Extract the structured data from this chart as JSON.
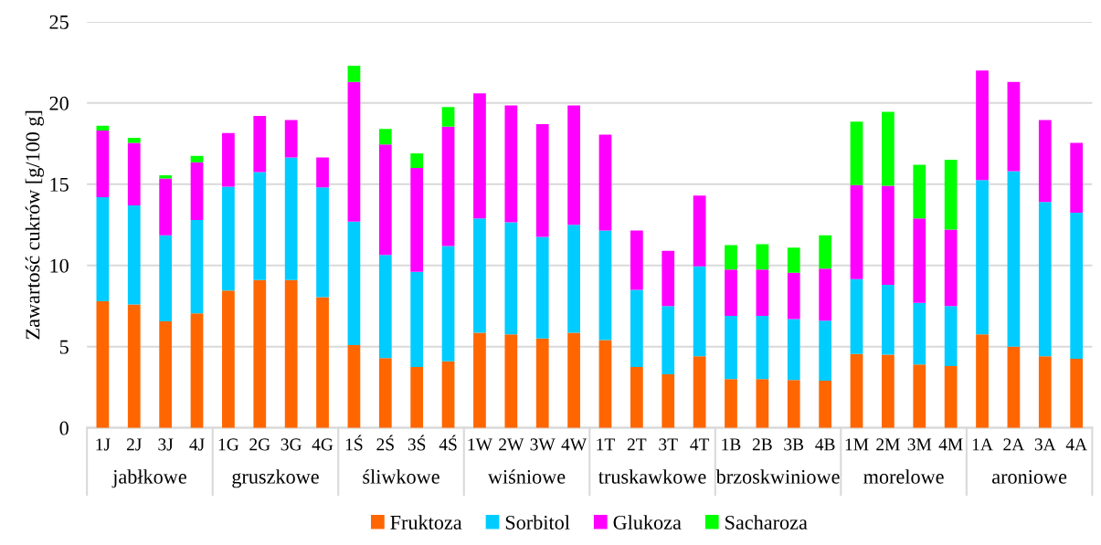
{
  "chart_data": {
    "type": "bar",
    "stacked": true,
    "ylabel": "Zawartość cukrów [g/100 g]",
    "categories": [
      "1J",
      "2J",
      "3J",
      "4J",
      "1G",
      "2G",
      "3G",
      "4G",
      "1Ś",
      "2Ś",
      "3Ś",
      "4Ś",
      "1W",
      "2W",
      "3W",
      "4W",
      "1T",
      "2T",
      "3T",
      "4T",
      "1B",
      "2B",
      "3B",
      "4B",
      "1M",
      "2M",
      "3M",
      "4M",
      "1A",
      "2A",
      "3A",
      "4A"
    ],
    "annotations": [
      "jabłkowe",
      "gruszkowe",
      "śliwkowe",
      "wiśniowe",
      "truskawkowe",
      "brzoskwiniowe",
      "morelowe",
      "aroniowe"
    ],
    "series": [
      {
        "name": "Fruktoza",
        "color": "#ff6600",
        "values": [
          7.8,
          7.6,
          6.55,
          7.05,
          8.45,
          9.1,
          9.1,
          8.05,
          5.1,
          4.3,
          3.75,
          4.1,
          5.85,
          5.75,
          5.5,
          5.85,
          5.4,
          3.75,
          3.3,
          4.4,
          3.0,
          3.0,
          2.95,
          2.9,
          4.55,
          4.5,
          3.9,
          3.8,
          5.75,
          5.0,
          4.4,
          4.25
        ]
      },
      {
        "name": "Sorbitol",
        "color": "#00ccff",
        "values": [
          6.4,
          6.1,
          5.3,
          5.75,
          6.4,
          6.65,
          7.55,
          6.75,
          7.6,
          6.35,
          5.85,
          7.1,
          7.05,
          6.9,
          6.25,
          6.65,
          6.75,
          4.75,
          4.2,
          5.55,
          3.9,
          3.9,
          3.75,
          3.7,
          4.6,
          4.3,
          3.8,
          3.7,
          9.5,
          10.8,
          9.5,
          9.0
        ]
      },
      {
        "name": "Glukoza",
        "color": "#ff00ff",
        "values": [
          4.1,
          3.85,
          3.5,
          3.55,
          3.3,
          3.45,
          2.3,
          1.85,
          8.6,
          6.8,
          6.4,
          7.35,
          7.7,
          7.2,
          6.95,
          7.35,
          5.9,
          3.65,
          3.4,
          4.35,
          2.85,
          2.85,
          2.85,
          3.2,
          5.8,
          6.1,
          5.2,
          4.7,
          6.75,
          5.5,
          5.05,
          4.3
        ]
      },
      {
        "name": "Sacharoza",
        "color": "#00ff00",
        "values": [
          0.3,
          0.3,
          0.2,
          0.4,
          null,
          null,
          null,
          null,
          1.0,
          0.95,
          0.9,
          1.2,
          null,
          null,
          null,
          null,
          null,
          null,
          null,
          null,
          1.5,
          1.55,
          1.55,
          2.05,
          3.9,
          4.55,
          3.3,
          4.3,
          null,
          null,
          null,
          null
        ]
      }
    ],
    "ylim": [
      0,
      25
    ],
    "yticks": [
      0,
      5,
      10,
      15,
      20,
      25
    ],
    "grid": "y",
    "legend": "bottom"
  }
}
